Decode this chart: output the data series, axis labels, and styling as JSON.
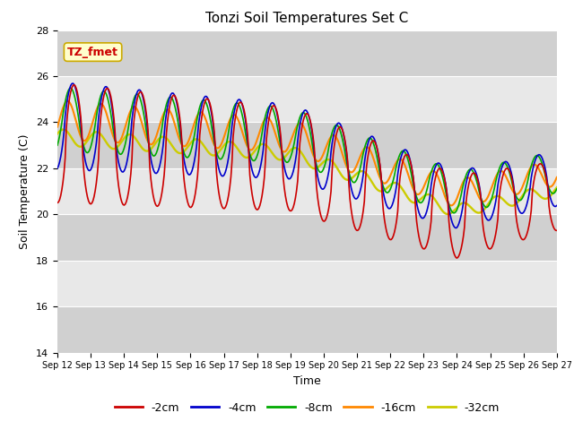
{
  "title": "Tonzi Soil Temperatures Set C",
  "xlabel": "Time",
  "ylabel": "Soil Temperature (C)",
  "ylim": [
    14,
    28
  ],
  "ytick_labels": [
    14,
    16,
    18,
    20,
    22,
    24,
    26,
    28
  ],
  "xtick_labels": [
    "Sep 12",
    "Sep 13",
    "Sep 14",
    "Sep 15",
    "Sep 16",
    "Sep 17",
    "Sep 18",
    "Sep 19",
    "Sep 20",
    "Sep 21",
    "Sep 22",
    "Sep 23",
    "Sep 24",
    "Sep 25",
    "Sep 26",
    "Sep 27"
  ],
  "series_colors": {
    "-2cm": "#cc0000",
    "-4cm": "#0000cc",
    "-8cm": "#00aa00",
    "-16cm": "#ff8800",
    "-32cm": "#cccc00"
  },
  "annotation_text": "TZ_fmet",
  "annotation_bg": "#ffffcc",
  "annotation_border": "#ccaa00",
  "fig_bg": "#ffffff",
  "plot_bg_light": "#e8e8e8",
  "plot_bg_dark": "#d0d0d0",
  "title_fontsize": 11,
  "axis_label_fontsize": 9,
  "tick_fontsize": 8,
  "legend_fontsize": 9,
  "linewidth_thin": 1.2,
  "linewidth_thick": 1.8
}
